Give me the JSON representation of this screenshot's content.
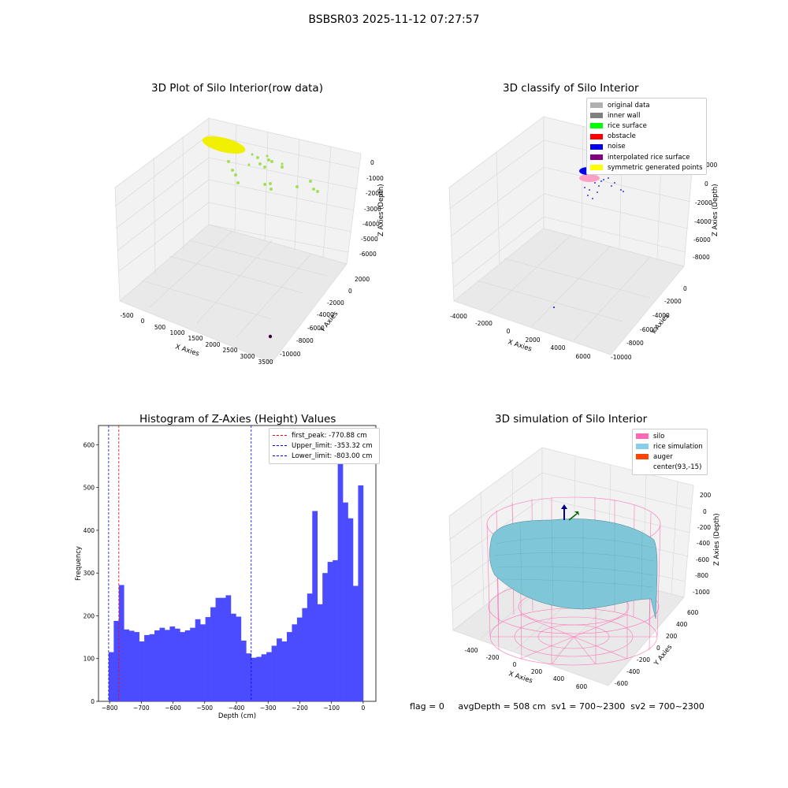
{
  "figure_title": "BSBSR03 2025-11-12 07:27:57",
  "footer": {
    "flag": "flag = 0",
    "avg_depth": "avgDepth = 508 cm",
    "sv1": "sv1 = 700~2300",
    "sv2": "sv2 = 700~2300"
  },
  "panels": {
    "raw": {
      "title": "3D Plot of Silo Interior(row data)",
      "xlabel": "X Axies",
      "ylabel": "Y Axies",
      "zlabel": "Z Axies (Depth)",
      "x_ticks": [
        "-500",
        "0",
        "500",
        "1000",
        "1500",
        "2000",
        "2500",
        "3000",
        "3500"
      ],
      "y_ticks": [
        "2000",
        "0",
        "-2000",
        "-4000",
        "-6000",
        "-8000",
        "-10000"
      ],
      "z_ticks": [
        "0",
        "-1000",
        "-2000",
        "-3000",
        "-4000",
        "-5000",
        "-6000"
      ]
    },
    "classify": {
      "title": "3D classify of Silo Interior",
      "xlabel": "X Axies",
      "ylabel": "Y Axies",
      "zlabel": "Z Axies (Depth)",
      "x_ticks": [
        "-4000",
        "-2000",
        "0",
        "2000",
        "4000",
        "6000"
      ],
      "y_ticks": [
        "0",
        "-2000",
        "-4000",
        "-6000",
        "-8000",
        "-10000"
      ],
      "z_ticks": [
        "0",
        "-2000",
        "-4000",
        "-6000",
        "-8000"
      ],
      "z_tick_partial": "000",
      "legend": [
        {
          "label": "original data",
          "color": "#b0b0b0"
        },
        {
          "label": "inner wall",
          "color": "#808080"
        },
        {
          "label": "rice surface",
          "color": "#00ff00"
        },
        {
          "label": "obstacle",
          "color": "#ff0000"
        },
        {
          "label": "noise",
          "color": "#0000ee"
        },
        {
          "label": "interpolated rice surface",
          "color": "#800080"
        },
        {
          "label": "symmetric generated points",
          "color": "#ffff00"
        }
      ]
    },
    "simulation": {
      "title": "3D simulation of Silo Interior",
      "xlabel": "X Axies",
      "ylabel": "Y Axies",
      "zlabel": "Z Axies (Depth)",
      "x_ticks": [
        "-400",
        "-200",
        "0",
        "200",
        "400",
        "600"
      ],
      "y_ticks": [
        "600",
        "400",
        "200",
        "0",
        "-200",
        "-400",
        "-600"
      ],
      "z_ticks": [
        "200",
        "0",
        "-200",
        "-400",
        "-600",
        "-800",
        "-1000"
      ],
      "legend": [
        {
          "label": "silo",
          "color": "#ff69b4"
        },
        {
          "label": "rice simulation",
          "color": "#87ceeb"
        },
        {
          "label": "auger",
          "color": "#ff4500"
        },
        {
          "label": "center(93,-15)",
          "color": ""
        }
      ]
    }
  },
  "chart_data": {
    "type": "bar",
    "title": "Histogram of Z-Axies (Height) Values",
    "xlabel": "Depth (cm)",
    "ylabel": "Frequency",
    "xlim": [
      -835,
      40
    ],
    "ylim": [
      0,
      645
    ],
    "x_ticks": [
      -800,
      -700,
      -600,
      -500,
      -400,
      -300,
      -200,
      -100,
      0
    ],
    "y_ticks": [
      0,
      100,
      200,
      300,
      400,
      500,
      600
    ],
    "bar_color": "#4b4bff",
    "bin_start": -803,
    "bin_width": 16.06,
    "values": [
      115,
      188,
      272,
      168,
      165,
      162,
      140,
      155,
      157,
      166,
      172,
      167,
      175,
      170,
      162,
      166,
      172,
      192,
      180,
      197,
      220,
      242,
      242,
      248,
      205,
      198,
      142,
      112,
      102,
      104,
      110,
      115,
      130,
      147,
      140,
      162,
      180,
      196,
      218,
      252,
      445,
      227,
      300,
      326,
      330,
      580,
      465,
      428,
      270,
      505
    ],
    "vlines": [
      {
        "label": "first_peak: -770.88 cm",
        "value": -770.88,
        "color": "#ff0000"
      },
      {
        "label": "Upper_limit: -353.32 cm",
        "value": -353.32,
        "color": "#0000ff"
      },
      {
        "label": "Lower_limit: -803.00 cm",
        "value": -803.0,
        "color": "#0000ff"
      }
    ],
    "legend_position": "top-right"
  }
}
